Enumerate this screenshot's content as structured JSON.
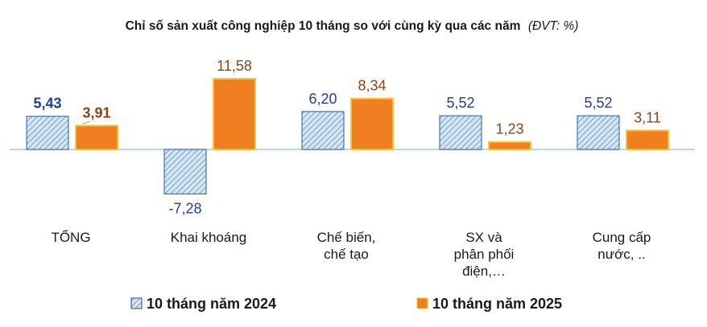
{
  "chart_data": {
    "type": "bar",
    "title": "Chỉ số sản xuất công nghiệp 10 tháng so với cùng kỳ qua các năm",
    "title_unit": "(ĐVT: %)",
    "categories": [
      [
        "TỔNG"
      ],
      [
        "Khai  khoáng"
      ],
      [
        "Chế biến,",
        "chế tạo"
      ],
      [
        "SX và",
        "phân phối",
        "điện,…"
      ],
      [
        "Cung cấp",
        "nước, .."
      ]
    ],
    "series": [
      {
        "name": "10 tháng năm 2024",
        "values": [
          5.43,
          -7.28,
          6.2,
          5.52,
          5.52
        ],
        "labels": [
          "5,43",
          "-7,28",
          "6,20",
          "5,52",
          "5,52"
        ],
        "color": "#1f3f9a",
        "fill": "#cfe3ef",
        "pattern": "diagonal-hatch"
      },
      {
        "name": "10 tháng năm 2025",
        "values": [
          3.91,
          11.58,
          8.34,
          1.23,
          3.11
        ],
        "labels": [
          "3,91",
          "11,58",
          "8,34",
          "1,23",
          "3,11"
        ],
        "color": "#f07f22",
        "border": "#f5c542",
        "label_color": "#8b4513"
      }
    ],
    "ylim": [
      -7.28,
      11.58
    ],
    "grid": false,
    "legend": "bottom"
  }
}
